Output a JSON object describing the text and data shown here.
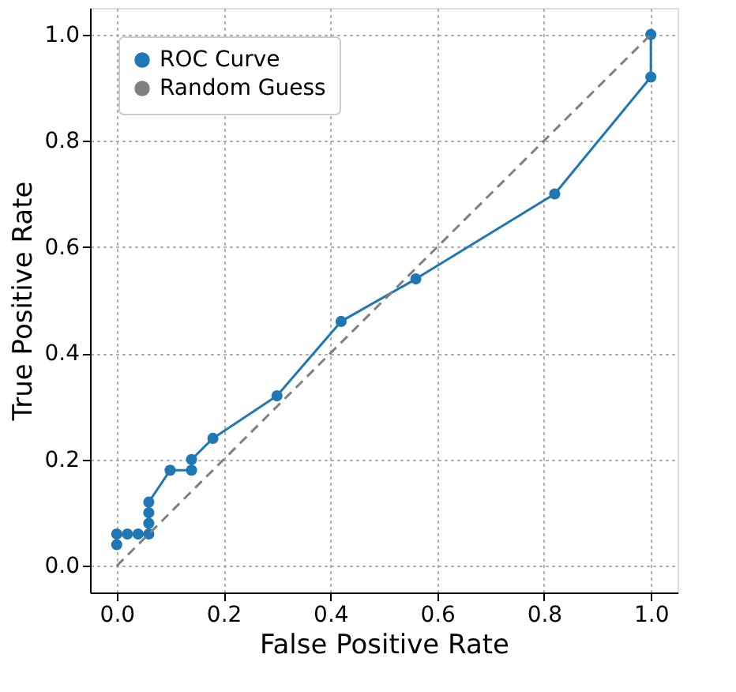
{
  "chart_data": {
    "type": "line",
    "xlabel": "False Positive Rate",
    "ylabel": "True Positive Rate",
    "xlim": [
      -0.05,
      1.05
    ],
    "ylim": [
      -0.05,
      1.05
    ],
    "xticks": [
      {
        "value": 0,
        "label": "0.0"
      },
      {
        "value": 0.2,
        "label": "0.2"
      },
      {
        "value": 0.4,
        "label": "0.4"
      },
      {
        "value": 0.6,
        "label": "0.6"
      },
      {
        "value": 0.8,
        "label": "0.8"
      },
      {
        "value": 1,
        "label": "1.0"
      }
    ],
    "yticks": [
      {
        "value": 0,
        "label": "0.0"
      },
      {
        "value": 0.2,
        "label": "0.2"
      },
      {
        "value": 0.4,
        "label": "0.4"
      },
      {
        "value": 0.6,
        "label": "0.6"
      },
      {
        "value": 0.8,
        "label": "0.8"
      },
      {
        "value": 1,
        "label": "1.0"
      }
    ],
    "grid": true,
    "legend": "top left",
    "series": [
      {
        "name": "ROC Curve",
        "color": "#1f77b4",
        "marker": "circle",
        "line_style": "solid",
        "x": [
          0,
          0,
          0.02,
          0.04,
          0.06,
          0.06,
          0.06,
          0.06,
          0.1,
          0.14,
          0.14,
          0.18,
          0.3,
          0.42,
          0.56,
          0.82,
          1,
          1
        ],
        "values": [
          0.04,
          0.06,
          0.06,
          0.06,
          0.06,
          0.08,
          0.1,
          0.12,
          0.18,
          0.18,
          0.2,
          0.24,
          0.32,
          0.46,
          0.54,
          0.7,
          0.92,
          1.0
        ]
      },
      {
        "name": "Random Guess",
        "color": "#808080",
        "marker": "none",
        "line_style": "dashed",
        "x": [
          0,
          1
        ],
        "values": [
          0,
          1
        ]
      }
    ]
  }
}
